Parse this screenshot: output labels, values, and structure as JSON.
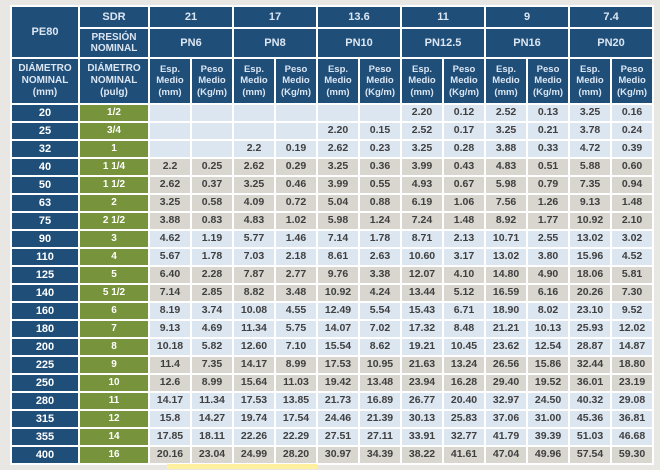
{
  "colors": {
    "navy": "#1f4e79",
    "green": "#77933c",
    "row_blue": "#dce6f1",
    "row_gray": "#d9d6cf",
    "header_text": "#dbe6f2",
    "data_text": "#404040",
    "background": "#e9e7e3",
    "grid_gap": "#ffffff",
    "bottom_highlight": "#fff09e"
  },
  "table": {
    "corner_label": "PE80",
    "sdr_label": "SDR",
    "presion_label": "PRESIÓN NOMINAL",
    "diam_mm_label": "DIÁMETRO NOMINAL (mm)",
    "diam_pulg_label": "DIÁMETRO NOMINAL (pulg)",
    "esp_label": "Esp. Medio (mm)",
    "peso_label": "Peso Medio (Kg/m)",
    "sdr_values": [
      "21",
      "17",
      "13.6",
      "11",
      "9",
      "7.4"
    ],
    "pn_labels": [
      "PN6",
      "PN8",
      "PN10",
      "PN12.5",
      "PN16",
      "PN20"
    ],
    "rows": [
      {
        "dn_mm": "20",
        "dn_pulg": "1/2",
        "shade": "blue",
        "values": [
          "",
          "",
          "",
          "",
          "",
          "",
          "2.20",
          "0.12",
          "2.52",
          "0.13",
          "3.25",
          "0.16"
        ]
      },
      {
        "dn_mm": "25",
        "dn_pulg": "3/4",
        "shade": "blue",
        "values": [
          "",
          "",
          "",
          "",
          "2.20",
          "0.15",
          "2.52",
          "0.17",
          "3.25",
          "0.21",
          "3.78",
          "0.24"
        ]
      },
      {
        "dn_mm": "32",
        "dn_pulg": "1",
        "shade": "blue",
        "values": [
          "",
          "",
          "2.2",
          "0.19",
          "2.62",
          "0.23",
          "3.25",
          "0.28",
          "3.88",
          "0.33",
          "4.72",
          "0.39"
        ]
      },
      {
        "dn_mm": "40",
        "dn_pulg": "1 1/4",
        "shade": "gray",
        "values": [
          "2.2",
          "0.25",
          "2.62",
          "0.29",
          "3.25",
          "0.36",
          "3.99",
          "0.43",
          "4.83",
          "0.51",
          "5.88",
          "0.60"
        ]
      },
      {
        "dn_mm": "50",
        "dn_pulg": "1 1/2",
        "shade": "gray",
        "values": [
          "2.62",
          "0.37",
          "3.25",
          "0.46",
          "3.99",
          "0.55",
          "4.93",
          "0.67",
          "5.98",
          "0.79",
          "7.35",
          "0.94"
        ]
      },
      {
        "dn_mm": "63",
        "dn_pulg": "2",
        "shade": "gray",
        "values": [
          "3.25",
          "0.58",
          "4.09",
          "0.72",
          "5.04",
          "0.88",
          "6.19",
          "1.06",
          "7.56",
          "1.26",
          "9.13",
          "1.48"
        ]
      },
      {
        "dn_mm": "75",
        "dn_pulg": "2 1/2",
        "shade": "gray",
        "values": [
          "3.88",
          "0.83",
          "4.83",
          "1.02",
          "5.98",
          "1.24",
          "7.24",
          "1.48",
          "8.92",
          "1.77",
          "10.92",
          "2.10"
        ]
      },
      {
        "dn_mm": "90",
        "dn_pulg": "3",
        "shade": "blue",
        "values": [
          "4.62",
          "1.19",
          "5.77",
          "1.46",
          "7.14",
          "1.78",
          "8.71",
          "2.13",
          "10.71",
          "2.55",
          "13.02",
          "3.02"
        ]
      },
      {
        "dn_mm": "110",
        "dn_pulg": "4",
        "shade": "blue",
        "values": [
          "5.67",
          "1.78",
          "7.03",
          "2.18",
          "8.61",
          "2.63",
          "10.60",
          "3.17",
          "13.02",
          "3.80",
          "15.96",
          "4.52"
        ]
      },
      {
        "dn_mm": "125",
        "dn_pulg": "5",
        "shade": "gray",
        "values": [
          "6.40",
          "2.28",
          "7.87",
          "2.77",
          "9.76",
          "3.38",
          "12.07",
          "4.10",
          "14.80",
          "4.90",
          "18.06",
          "5.81"
        ]
      },
      {
        "dn_mm": "140",
        "dn_pulg": "5 1/2",
        "shade": "gray",
        "values": [
          "7.14",
          "2.85",
          "8.82",
          "3.48",
          "10.92",
          "4.24",
          "13.44",
          "5.12",
          "16.59",
          "6.16",
          "20.26",
          "7.30"
        ]
      },
      {
        "dn_mm": "160",
        "dn_pulg": "6",
        "shade": "blue",
        "values": [
          "8.19",
          "3.74",
          "10.08",
          "4.55",
          "12.49",
          "5.54",
          "15.43",
          "6.71",
          "18.90",
          "8.02",
          "23.10",
          "9.52"
        ]
      },
      {
        "dn_mm": "180",
        "dn_pulg": "7",
        "shade": "blue",
        "values": [
          "9.13",
          "4.69",
          "11.34",
          "5.75",
          "14.07",
          "7.02",
          "17.32",
          "8.48",
          "21.21",
          "10.13",
          "25.93",
          "12.02"
        ]
      },
      {
        "dn_mm": "200",
        "dn_pulg": "8",
        "shade": "blue",
        "values": [
          "10.18",
          "5.82",
          "12.60",
          "7.10",
          "15.54",
          "8.62",
          "19.21",
          "10.45",
          "23.62",
          "12.54",
          "28.87",
          "14.87"
        ]
      },
      {
        "dn_mm": "225",
        "dn_pulg": "9",
        "shade": "gray",
        "values": [
          "11.4",
          "7.35",
          "14.17",
          "8.99",
          "17.53",
          "10.95",
          "21.63",
          "13.24",
          "26.56",
          "15.86",
          "32.44",
          "18.80"
        ]
      },
      {
        "dn_mm": "250",
        "dn_pulg": "10",
        "shade": "gray",
        "values": [
          "12.6",
          "8.99",
          "15.64",
          "11.03",
          "19.42",
          "13.48",
          "23.94",
          "16.28",
          "29.40",
          "19.52",
          "36.01",
          "23.19"
        ]
      },
      {
        "dn_mm": "280",
        "dn_pulg": "11",
        "shade": "blue",
        "values": [
          "14.17",
          "11.34",
          "17.53",
          "13.85",
          "21.73",
          "16.89",
          "26.77",
          "20.40",
          "32.97",
          "24.50",
          "40.32",
          "29.08"
        ]
      },
      {
        "dn_mm": "315",
        "dn_pulg": "12",
        "shade": "blue",
        "values": [
          "15.8",
          "14.27",
          "19.74",
          "17.54",
          "24.46",
          "21.39",
          "30.13",
          "25.83",
          "37.06",
          "31.00",
          "45.36",
          "36.81"
        ]
      },
      {
        "dn_mm": "355",
        "dn_pulg": "14",
        "shade": "blue",
        "values": [
          "17.85",
          "18.11",
          "22.26",
          "22.29",
          "27.51",
          "27.11",
          "33.91",
          "32.77",
          "41.79",
          "39.39",
          "51.03",
          "46.68"
        ]
      },
      {
        "dn_mm": "400",
        "dn_pulg": "16",
        "shade": "gray",
        "values": [
          "20.16",
          "23.04",
          "24.99",
          "28.20",
          "30.97",
          "34.39",
          "38.22",
          "41.61",
          "47.04",
          "49.96",
          "57.54",
          "59.30"
        ]
      }
    ]
  }
}
